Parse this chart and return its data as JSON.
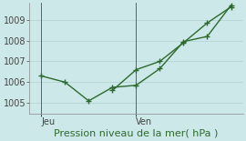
{
  "background_color": "#cce8e8",
  "grid_color": "#b8d8d8",
  "line_color": "#2d6a2d",
  "xlabel": "Pression niveau de la mer( hPa )",
  "xlabel_fontsize": 8,
  "ylim": [
    1004.5,
    1009.8
  ],
  "yticks": [
    1005,
    1006,
    1007,
    1008,
    1009
  ],
  "ytick_fontsize": 7,
  "xtick_labels": [
    "Jeu",
    "Ven"
  ],
  "xtick_positions": [
    0,
    8
  ],
  "vline_x": [
    0,
    8
  ],
  "series1_x": [
    0,
    2,
    4,
    6,
    8,
    10,
    12,
    14,
    16
  ],
  "series1_y": [
    1006.3,
    1006.0,
    1005.1,
    1005.75,
    1005.85,
    1006.65,
    1007.95,
    1008.2,
    1009.7
  ],
  "series2_x": [
    6,
    8,
    10,
    12,
    14,
    16
  ],
  "series2_y": [
    1005.6,
    1006.6,
    1007.0,
    1007.9,
    1008.85,
    1009.62
  ],
  "tick_fontsize": 7,
  "marker_size": 5,
  "line_width": 1.0,
  "xlim": [
    -1,
    17
  ]
}
